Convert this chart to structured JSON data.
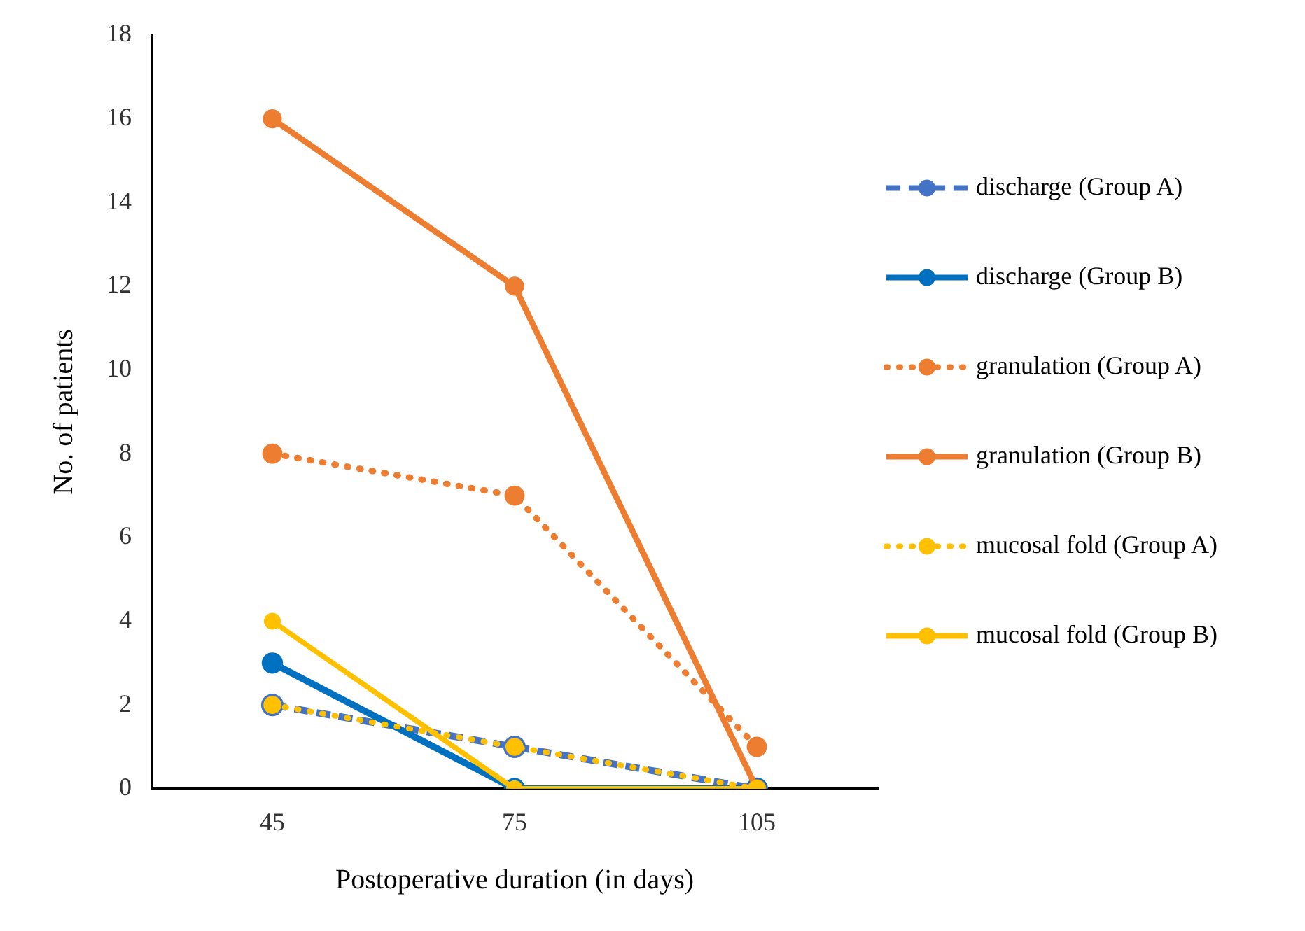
{
  "chart_data": {
    "type": "line",
    "xlabel": "Postoperative duration (in days)",
    "ylabel": "No. of patients",
    "categories": [
      "45",
      "75",
      "105"
    ],
    "ylim": [
      0,
      18
    ],
    "yticks": [
      0,
      2,
      4,
      6,
      8,
      10,
      12,
      14,
      16,
      18
    ],
    "grid": false,
    "legend": "right",
    "marker": "circle",
    "series": [
      {
        "name": "discharge (Group A)",
        "color": "#4472c4",
        "line_style": "dashed",
        "values": [
          2,
          1,
          0
        ]
      },
      {
        "name": "discharge (Group B)",
        "color": "#0070c0",
        "line_style": "solid",
        "values": [
          3,
          0,
          0
        ]
      },
      {
        "name": "granulation (Group A)",
        "color": "#ed7d31",
        "line_style": "dotted",
        "values": [
          8,
          7,
          1
        ]
      },
      {
        "name": "granulation (Group B)",
        "color": "#ed7d31",
        "line_style": "solid",
        "values": [
          16,
          12,
          0
        ]
      },
      {
        "name": "mucosal fold (Group A)",
        "color": "#ffc000",
        "line_style": "dotted",
        "values": [
          2,
          1,
          0
        ]
      },
      {
        "name": "mucosal fold (Group B)",
        "color": "#ffc000",
        "line_style": "solid",
        "values": [
          4,
          0,
          0
        ]
      }
    ]
  }
}
